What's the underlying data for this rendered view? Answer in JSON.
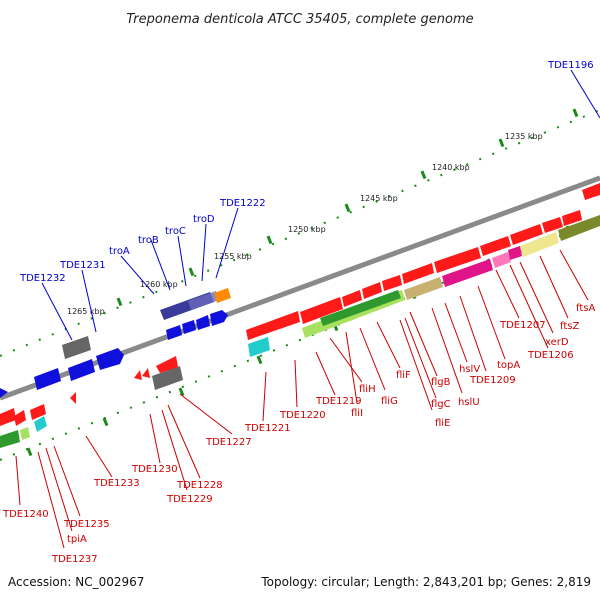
{
  "title": "Treponema denticola ATCC 35405, complete genome",
  "footer": {
    "accession": "Accession: NC_002967",
    "topology": "Topology: circular; Length: 2,843,201 bp; Genes: 2,819"
  },
  "colors": {
    "backbone": "#8a8a8a",
    "tick": "#1a8a1a",
    "label_red": "#cc0000",
    "label_blue": "#0000cc",
    "grey": "#666666",
    "red": "#ff1a1a",
    "blue": "#1010dd",
    "navy": "#3a3a9a",
    "orange": "#ff8c00",
    "green": "#2e9a2e",
    "lime": "#a8e060",
    "tan": "#c8b070",
    "magenta": "#e0158a",
    "pink": "#ff77bb",
    "khaki": "#eee78f",
    "olive": "#7a8a2a",
    "cyan": "#22cccc"
  },
  "kbp_labels": [
    "1235 kbp",
    "1240 kbp",
    "1245 kbp",
    "1250 kbp",
    "1255 kbp",
    "1260 kbp",
    "1265 kbp"
  ],
  "blue_labels": [
    "TDE1196",
    "TDE1222",
    "troD",
    "troC",
    "troB",
    "troA",
    "TDE1231",
    "TDE1232"
  ],
  "red_labels": [
    "ftsA",
    "ftsZ",
    "xerD",
    "TDE1206",
    "TDE1207",
    "topA",
    "TDE1209",
    "hslV",
    "hslU",
    "fliF",
    "flgB",
    "flgC",
    "fliE",
    "fliH",
    "fliI",
    "fliG",
    "TDE1219",
    "TDE1220",
    "TDE1221",
    "TDE1227",
    "TDE1228",
    "TDE1229",
    "TDE1230",
    "TDE1233",
    "TDE1235",
    "tpiA",
    "TDE1237",
    "TDE1240"
  ]
}
